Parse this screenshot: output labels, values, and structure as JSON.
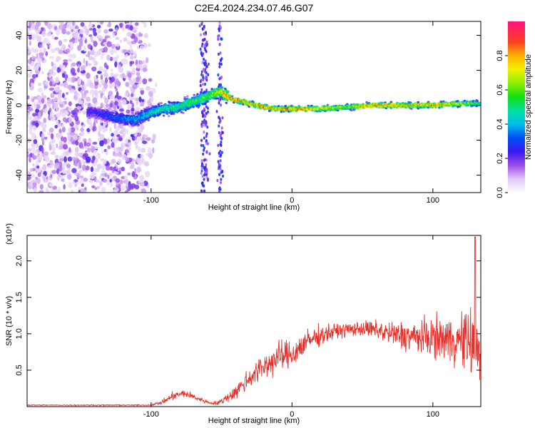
{
  "title": "C2E4.2024.234.07.46.G07",
  "chart_data": [
    {
      "type": "heatmap",
      "xlabel": "Height of straight line (km)",
      "ylabel": "Frequency (Hz)",
      "xlim": [
        -188,
        134
      ],
      "ylim": [
        -50,
        48
      ],
      "x_ticks": [
        -100,
        0,
        100
      ],
      "x_tick_labels": [
        "-100",
        "0",
        "100"
      ],
      "y_ticks": [
        -40,
        -20,
        0,
        20,
        40
      ],
      "y_tick_labels": [
        "-40",
        "-20",
        "0",
        "20",
        "40"
      ],
      "colorbar": {
        "label": "Normalized spectral amplitude",
        "range": [
          0,
          1
        ],
        "ticks": [
          0.0,
          0.2,
          0.4,
          0.6,
          0.8
        ],
        "tick_labels": [
          "0.0",
          "0.2",
          "0.4",
          "0.6",
          "0.8"
        ]
      },
      "grid": false,
      "ridge": {
        "x": [
          -140,
          -130,
          -120,
          -110,
          -100,
          -90,
          -80,
          -70,
          -60,
          -50,
          -46,
          -40,
          -30,
          -20,
          -10,
          0,
          20,
          40,
          60,
          80,
          100,
          120,
          134
        ],
        "frequency": [
          -4,
          -6,
          -8,
          -8,
          -4,
          -2,
          -1,
          2,
          5,
          8,
          5,
          3,
          1,
          -1,
          -2,
          -2,
          -2,
          -1,
          0,
          0,
          0,
          1,
          1
        ],
        "amplitude": [
          0.25,
          0.3,
          0.35,
          0.4,
          0.45,
          0.5,
          0.5,
          0.55,
          0.6,
          0.7,
          0.9,
          0.85,
          0.8,
          0.85,
          0.8,
          0.85,
          0.75,
          0.7,
          0.85,
          0.75,
          0.8,
          0.7,
          0.55
        ]
      }
    },
    {
      "type": "line",
      "xlabel": "Height of straight line (km)",
      "ylabel": "SNR (10 * v/v)",
      "y_multiplier": "(x10⁴)",
      "xlim": [
        -188,
        134
      ],
      "ylim": [
        0,
        2.35
      ],
      "x_ticks": [
        -100,
        0,
        100
      ],
      "x_tick_labels": [
        "-100",
        "0",
        "100"
      ],
      "y_ticks": [
        0.5,
        1.0,
        1.5,
        2.0
      ],
      "y_tick_labels": [
        "0.5",
        "1.0",
        "1.5",
        "2.0"
      ],
      "grid": false,
      "series": [
        {
          "color": "#e8302a",
          "envelope_x": [
            -188,
            -140,
            -100,
            -92,
            -84,
            -76,
            -68,
            -58,
            -52,
            -40,
            -30,
            -20,
            -10,
            0,
            10,
            20,
            30,
            40,
            50,
            60,
            70,
            80,
            90,
            100,
            110,
            120,
            130,
            134
          ],
          "envelope_mean": [
            0.02,
            0.02,
            0.02,
            0.06,
            0.15,
            0.18,
            0.12,
            0.05,
            0.05,
            0.2,
            0.4,
            0.55,
            0.68,
            0.72,
            0.88,
            0.98,
            1.03,
            1.06,
            1.07,
            1.05,
            1.0,
            0.97,
            0.95,
            0.95,
            0.93,
            0.9,
            0.88,
            0.85
          ],
          "envelope_spread": [
            0.01,
            0.01,
            0.01,
            0.05,
            0.08,
            0.08,
            0.06,
            0.03,
            0.05,
            0.15,
            0.22,
            0.28,
            0.3,
            0.3,
            0.25,
            0.2,
            0.16,
            0.14,
            0.15,
            0.2,
            0.25,
            0.3,
            0.35,
            0.4,
            0.45,
            0.55,
            0.75,
            0.8
          ],
          "peak_x": 130,
          "peak_y": 2.33
        }
      ]
    }
  ],
  "colors": {
    "colormap": [
      "#ffffff",
      "#e6d2f5",
      "#b86ce8",
      "#7a1cf0",
      "#1f1ff5",
      "#00c8e6",
      "#00e68a",
      "#10e010",
      "#f0f000",
      "#ffa000",
      "#ff2020",
      "#ff1480"
    ],
    "snr_line": "#e8302a"
  }
}
